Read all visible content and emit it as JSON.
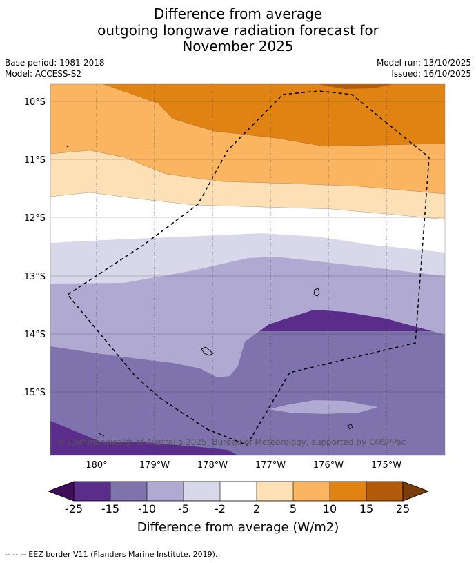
{
  "title": {
    "line1": "Difference from average",
    "line2": "outgoing longwave radiation forecast for",
    "line3": "November 2025"
  },
  "info": {
    "base_period": "Base period: 1981-2018",
    "model": "Model: ACCESS-S2",
    "model_run": "Model run: 13/10/2025",
    "issued": "Issued: 16/10/2025"
  },
  "map": {
    "lat_labels": [
      "10°S",
      "11°S",
      "12°S",
      "13°S",
      "14°S",
      "15°S"
    ],
    "lon_labels": [
      "180°",
      "179°W",
      "178°W",
      "177°W",
      "176°W",
      "175°W"
    ],
    "copyright": "© Commonwealth of Australia 2025, Bureau of Meteorology, supported by COSPPac"
  },
  "legend": {
    "ticks": [
      "-25",
      "-15",
      "-10",
      "-5",
      "-2",
      "2",
      "5",
      "10",
      "15",
      "25"
    ],
    "colors": [
      "#3f0d5a",
      "#5a2d8a",
      "#7f73ad",
      "#b0a9d1",
      "#d9d8ea",
      "#ffffff",
      "#fde0b5",
      "#fbb45f",
      "#e08313",
      "#b05a0a",
      "#7a3c08"
    ],
    "label": "Difference from average (W/m2)"
  },
  "footer": {
    "eez_note": "--  --  -- EEZ border V11 (Flanders Marine Institute, 2019)."
  }
}
